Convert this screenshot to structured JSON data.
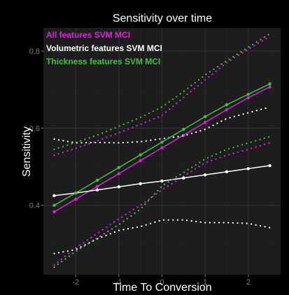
{
  "chart_data": {
    "type": "line",
    "title": "Sensitivity over time",
    "xlabel": "Time To Conversion",
    "ylabel": "Sensitivity",
    "xlim": [
      -2.75,
      2.75
    ],
    "ylim": [
      0.22,
      0.86
    ],
    "x_ticks": [
      -2,
      -1,
      0,
      1,
      2
    ],
    "x_tick_labels": [
      "-2",
      "-1",
      "0",
      "1",
      "2"
    ],
    "y_ticks": [
      0.4,
      0.6,
      0.8
    ],
    "y_tick_labels": [
      "0.4",
      "0.6",
      "0.8"
    ],
    "grid": true,
    "legend_position": "top-left",
    "x": [
      -2.5,
      -2.0,
      -1.5,
      -1.0,
      -0.5,
      0.0,
      0.5,
      1.0,
      1.5,
      2.0,
      2.5
    ],
    "series": [
      {
        "name": "All features SVM MCI",
        "color": "#e11fe1",
        "values": [
          0.383,
          0.416,
          0.449,
          0.482,
          0.516,
          0.549,
          0.582,
          0.615,
          0.648,
          0.679,
          0.707
        ],
        "upper": [
          0.53,
          0.548,
          0.567,
          0.588,
          0.61,
          0.633,
          0.68,
          0.725,
          0.77,
          0.805,
          0.838
        ],
        "lower": [
          0.245,
          0.29,
          0.327,
          0.365,
          0.4,
          0.44,
          0.475,
          0.51,
          0.53,
          0.545,
          0.562
        ]
      },
      {
        "name": "Volumetric features SVM MCI",
        "color": "#ffffff",
        "values": [
          0.425,
          0.432,
          0.44,
          0.448,
          0.456,
          0.463,
          0.471,
          0.479,
          0.487,
          0.495,
          0.503
        ],
        "upper": [
          0.572,
          0.562,
          0.563,
          0.562,
          0.565,
          0.573,
          0.58,
          0.597,
          0.625,
          0.64,
          0.655
        ],
        "lower": [
          0.275,
          0.285,
          0.313,
          0.335,
          0.345,
          0.362,
          0.362,
          0.355,
          0.355,
          0.353,
          0.342
        ]
      },
      {
        "name": "Thickness features SVM MCI",
        "color": "#3cc43c",
        "values": [
          0.4,
          0.432,
          0.465,
          0.498,
          0.531,
          0.564,
          0.597,
          0.63,
          0.661,
          0.688,
          0.715
        ],
        "upper": [
          0.545,
          0.563,
          0.582,
          0.605,
          0.628,
          0.655,
          0.695,
          0.738,
          0.775,
          0.81,
          0.845
        ],
        "lower": [
          0.24,
          0.28,
          0.315,
          0.35,
          0.39,
          0.45,
          0.485,
          0.52,
          0.545,
          0.562,
          0.578
        ]
      }
    ]
  }
}
